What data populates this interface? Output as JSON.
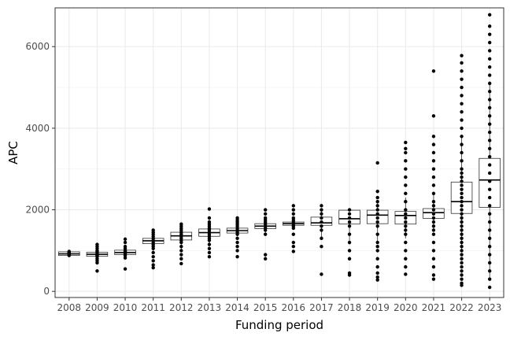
{
  "chart_data": {
    "type": "boxplot",
    "title": "",
    "xlabel": "Funding period",
    "ylabel": "APC",
    "ylim": [
      -150,
      6950
    ],
    "yticks": [
      0,
      2000,
      4000,
      6000
    ],
    "yticks_minor": [
      1000,
      3000,
      5000
    ],
    "grid": true,
    "categories": [
      "2008",
      "2009",
      "2010",
      "2011",
      "2012",
      "2013",
      "2014",
      "2015",
      "2016",
      "2017",
      "2018",
      "2019",
      "2020",
      "2021",
      "2022",
      "2023"
    ],
    "boxes": [
      {
        "q1": 880,
        "median": 920,
        "q3": 970,
        "whisker_low": 880,
        "whisker_high": 980
      },
      {
        "q1": 860,
        "median": 910,
        "q3": 960,
        "whisker_low": 800,
        "whisker_high": 1030
      },
      {
        "q1": 900,
        "median": 950,
        "q3": 1010,
        "whisker_low": 830,
        "whisker_high": 1080
      },
      {
        "q1": 1170,
        "median": 1240,
        "q3": 1300,
        "whisker_low": 1000,
        "whisker_high": 1450
      },
      {
        "q1": 1260,
        "median": 1360,
        "q3": 1450,
        "whisker_low": 1000,
        "whisker_high": 1650
      },
      {
        "q1": 1350,
        "median": 1440,
        "q3": 1530,
        "whisker_low": 1100,
        "whisker_high": 1750
      },
      {
        "q1": 1430,
        "median": 1490,
        "q3": 1550,
        "whisker_low": 1350,
        "whisker_high": 1650
      },
      {
        "q1": 1540,
        "median": 1600,
        "q3": 1660,
        "whisker_low": 1400,
        "whisker_high": 1780
      },
      {
        "q1": 1620,
        "median": 1660,
        "q3": 1700,
        "whisker_low": 1550,
        "whisker_high": 1770
      },
      {
        "q1": 1620,
        "median": 1680,
        "q3": 1820,
        "whisker_low": 1300,
        "whisker_high": 2000
      },
      {
        "q1": 1650,
        "median": 1780,
        "q3": 1990,
        "whisker_low": 1150,
        "whisker_high": 2000
      },
      {
        "q1": 1660,
        "median": 1870,
        "q3": 1990,
        "whisker_low": 1200,
        "whisker_high": 2200
      },
      {
        "q1": 1650,
        "median": 1860,
        "q3": 1960,
        "whisker_low": 1300,
        "whisker_high": 2300
      },
      {
        "q1": 1790,
        "median": 1930,
        "q3": 2030,
        "whisker_low": 1500,
        "whisker_high": 2400
      },
      {
        "q1": 1910,
        "median": 2200,
        "q3": 2680,
        "whisker_low": 1000,
        "whisker_high": 3800
      },
      {
        "q1": 2060,
        "median": 2730,
        "q3": 3260,
        "whisker_low": 300,
        "whisker_high": 5100
      }
    ],
    "points": [
      [
        880,
        900,
        920,
        940,
        960,
        970,
        950,
        980
      ],
      [
        500,
        700,
        750,
        800,
        850,
        880,
        900,
        920,
        950,
        980,
        1000,
        1050,
        1100,
        1150
      ],
      [
        550,
        820,
        880,
        920,
        950,
        980,
        1000,
        1050,
        1100,
        1200,
        1280
      ],
      [
        580,
        650,
        750,
        850,
        950,
        1050,
        1100,
        1150,
        1200,
        1250,
        1300,
        1350,
        1400,
        1450,
        1500
      ],
      [
        680,
        800,
        900,
        1000,
        1100,
        1200,
        1250,
        1300,
        1350,
        1400,
        1450,
        1500,
        1550,
        1600,
        1650
      ],
      [
        850,
        950,
        1050,
        1150,
        1250,
        1300,
        1350,
        1400,
        1450,
        1500,
        1550,
        1600,
        1650,
        1700,
        1800,
        2020
      ],
      [
        850,
        1000,
        1100,
        1200,
        1300,
        1400,
        1450,
        1500,
        1550,
        1600,
        1650,
        1700,
        1750,
        1800
      ],
      [
        800,
        900,
        1400,
        1500,
        1550,
        1600,
        1650,
        1700,
        1750,
        1800,
        1900,
        2000
      ],
      [
        980,
        1100,
        1200,
        1400,
        1550,
        1600,
        1650,
        1700,
        1750,
        1800,
        1900,
        2000,
        2100
      ],
      [
        420,
        1100,
        1300,
        1500,
        1600,
        1700,
        1800,
        1900,
        2000,
        2100
      ],
      [
        400,
        450,
        800,
        1000,
        1200,
        1400,
        1600,
        1700,
        1800,
        1900,
        2000
      ],
      [
        280,
        350,
        450,
        600,
        800,
        1000,
        1100,
        1200,
        1400,
        1600,
        1700,
        1800,
        1900,
        2000,
        2100,
        2200,
        2300,
        2450,
        3150
      ],
      [
        420,
        600,
        800,
        1000,
        1200,
        1400,
        1500,
        1600,
        1700,
        1800,
        1900,
        2000,
        2200,
        2400,
        2600,
        2800,
        3000,
        3200,
        3400,
        3500,
        3650
      ],
      [
        300,
        400,
        600,
        800,
        1000,
        1200,
        1400,
        1500,
        1600,
        1700,
        1800,
        1900,
        2000,
        2100,
        2200,
        2400,
        2600,
        2800,
        3000,
        3200,
        3400,
        3600,
        3800,
        4300,
        5400
      ],
      [
        150,
        200,
        300,
        400,
        500,
        600,
        700,
        800,
        900,
        1000,
        1100,
        1200,
        1300,
        1400,
        1500,
        1600,
        1700,
        1800,
        1900,
        2000,
        2100,
        2200,
        2300,
        2400,
        2500,
        2600,
        2700,
        2800,
        2900,
        3000,
        3200,
        3400,
        3600,
        3800,
        4000,
        4200,
        4400,
        4600,
        4800,
        5000,
        5200,
        5400,
        5600,
        5780
      ],
      [
        100,
        300,
        500,
        700,
        900,
        1100,
        1300,
        1500,
        1700,
        1900,
        2100,
        2300,
        2500,
        2700,
        2900,
        3100,
        3300,
        3500,
        3700,
        3900,
        4100,
        4300,
        4500,
        4700,
        4900,
        5100,
        5300,
        5500,
        5700,
        5900,
        6100,
        6300,
        6500,
        6780
      ]
    ]
  }
}
